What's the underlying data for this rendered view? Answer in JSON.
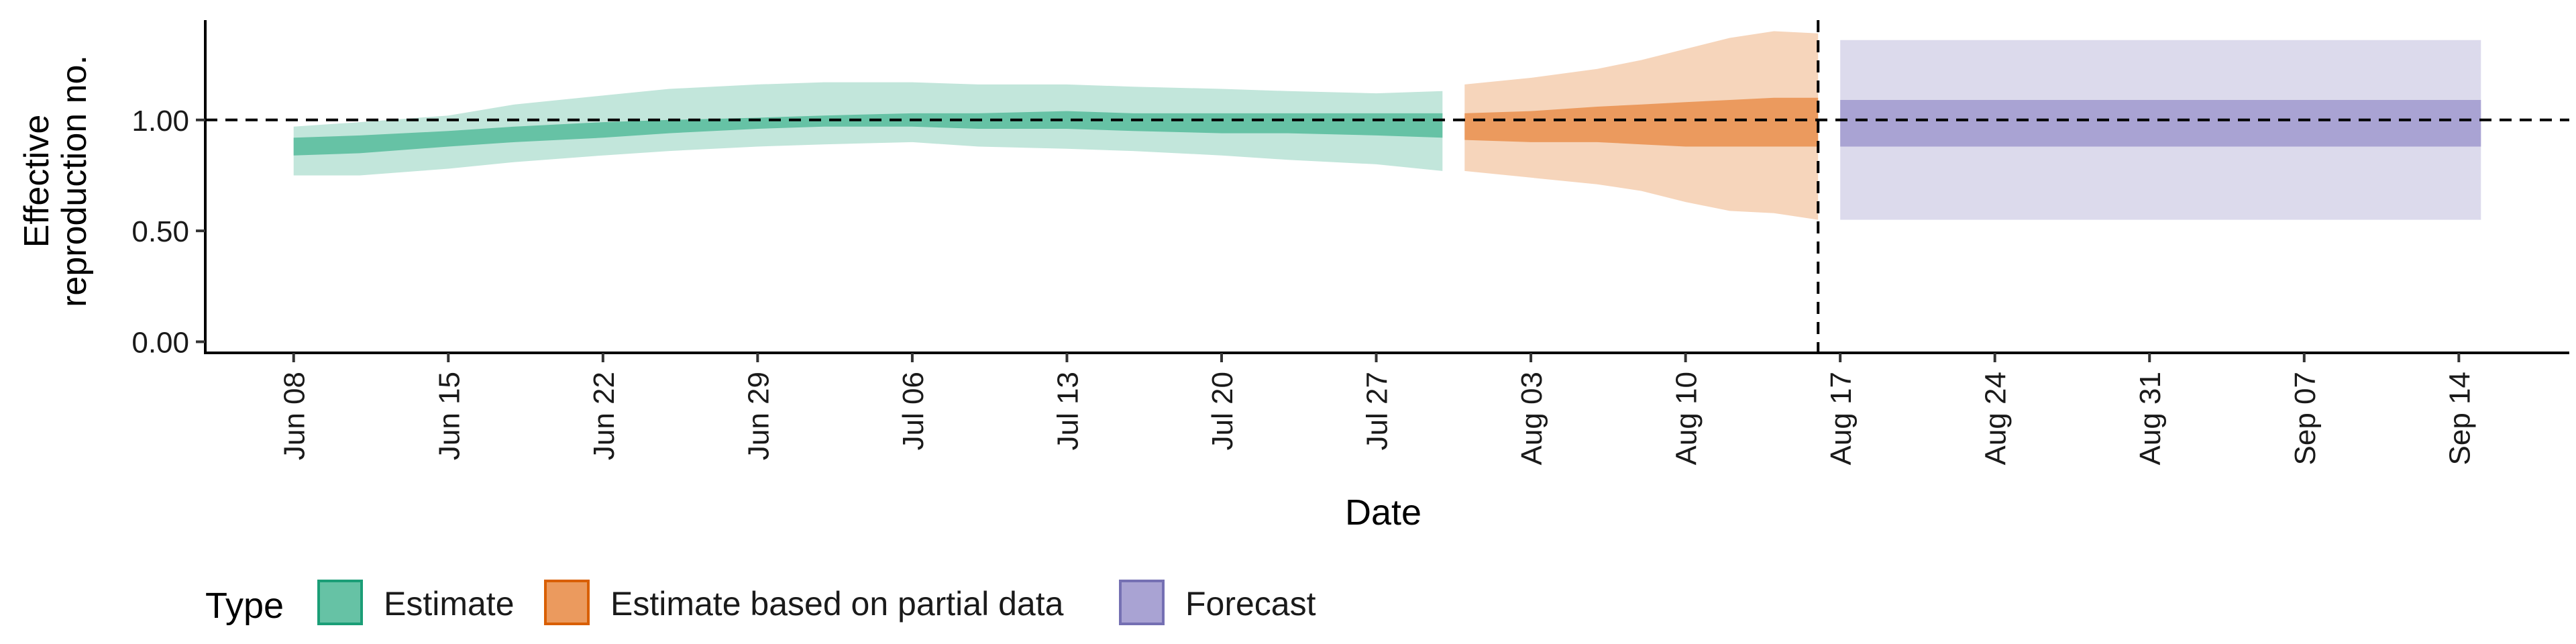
{
  "chart_data": {
    "type": "area",
    "xlabel": "Date",
    "ylabel": [
      "Effective",
      "reproduction no."
    ],
    "x_range": [
      "2020-06-04",
      "2020-09-19"
    ],
    "ylim": [
      -0.05,
      1.45
    ],
    "y_ticks": [
      0.0,
      0.5,
      1.0
    ],
    "y_tick_labels": [
      "0.00",
      "0.50",
      "1.00"
    ],
    "x_ticks": [
      "2020-06-08",
      "2020-06-15",
      "2020-06-22",
      "2020-06-29",
      "2020-07-06",
      "2020-07-13",
      "2020-07-20",
      "2020-07-27",
      "2020-08-03",
      "2020-08-10",
      "2020-08-17",
      "2020-08-24",
      "2020-08-31",
      "2020-09-07",
      "2020-09-14"
    ],
    "x_tick_labels": [
      "Jun 08",
      "Jun 15",
      "Jun 22",
      "Jun 29",
      "Jul 06",
      "Jul 13",
      "Jul 20",
      "Jul 27",
      "Aug 03",
      "Aug 10",
      "Aug 17",
      "Aug 24",
      "Aug 31",
      "Sep 07",
      "Sep 14"
    ],
    "reference_line_y": 1.0,
    "vertical_line_x": "2020-08-16",
    "grid": false,
    "legend": {
      "position": "bottom-left",
      "title": "Type",
      "entries": [
        {
          "label": "Estimate",
          "fill": "#66c2a5",
          "border": "#1b9e77"
        },
        {
          "label": "Estimate based on partial data",
          "fill": "#eb9a5e",
          "border": "#d95f02"
        },
        {
          "label": "Forecast",
          "fill": "#a9a3d3",
          "border": "#7570b3"
        }
      ]
    },
    "series": [
      {
        "name": "Estimate",
        "outer_color": "#c2e6db",
        "inner_color": "#66c2a5",
        "x": [
          "2020-06-08",
          "2020-06-11",
          "2020-06-15",
          "2020-06-18",
          "2020-06-22",
          "2020-06-25",
          "2020-06-29",
          "2020-07-02",
          "2020-07-06",
          "2020-07-09",
          "2020-07-13",
          "2020-07-16",
          "2020-07-20",
          "2020-07-23",
          "2020-07-27",
          "2020-07-30"
        ],
        "lower_outer": [
          0.75,
          0.75,
          0.78,
          0.81,
          0.84,
          0.86,
          0.88,
          0.89,
          0.9,
          0.88,
          0.87,
          0.86,
          0.84,
          0.82,
          0.8,
          0.77
        ],
        "lower_inner": [
          0.84,
          0.85,
          0.88,
          0.9,
          0.92,
          0.94,
          0.96,
          0.97,
          0.97,
          0.96,
          0.96,
          0.95,
          0.94,
          0.94,
          0.93,
          0.92
        ],
        "upper_inner": [
          0.92,
          0.93,
          0.95,
          0.97,
          0.99,
          1.0,
          1.01,
          1.02,
          1.03,
          1.03,
          1.04,
          1.03,
          1.03,
          1.03,
          1.03,
          1.03
        ],
        "upper_outer": [
          0.97,
          0.99,
          1.02,
          1.07,
          1.11,
          1.14,
          1.16,
          1.17,
          1.17,
          1.16,
          1.16,
          1.15,
          1.14,
          1.13,
          1.12,
          1.13
        ]
      },
      {
        "name": "Estimate based on partial data",
        "outer_color": "#f6d5bb",
        "inner_color": "#eb9a5e",
        "x": [
          "2020-07-31",
          "2020-08-03",
          "2020-08-06",
          "2020-08-08",
          "2020-08-10",
          "2020-08-12",
          "2020-08-14",
          "2020-08-16"
        ],
        "lower_outer": [
          0.77,
          0.74,
          0.71,
          0.68,
          0.63,
          0.59,
          0.58,
          0.55
        ],
        "lower_inner": [
          0.91,
          0.9,
          0.9,
          0.89,
          0.88,
          0.88,
          0.88,
          0.88
        ],
        "upper_inner": [
          1.03,
          1.04,
          1.06,
          1.07,
          1.08,
          1.09,
          1.1,
          1.1
        ],
        "upper_outer": [
          1.16,
          1.19,
          1.23,
          1.27,
          1.32,
          1.37,
          1.4,
          1.39
        ]
      },
      {
        "name": "Forecast",
        "outer_color": "#dcdaec",
        "inner_color": "#a9a3d3",
        "x": [
          "2020-08-17",
          "2020-09-15"
        ],
        "lower_outer": [
          0.55,
          0.55
        ],
        "lower_inner": [
          0.88,
          0.88
        ],
        "upper_inner": [
          1.09,
          1.09
        ],
        "upper_outer": [
          1.36,
          1.36
        ]
      }
    ]
  }
}
